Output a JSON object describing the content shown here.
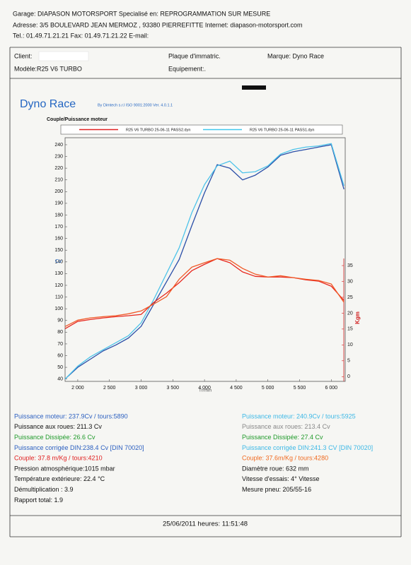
{
  "header": {
    "lines": [
      "Garage: DIAPASON MOTORSPORT   Specialisé en: REPROGRAMMATION SUR MESURE",
      "Adresse: 3/5 BOULEVARD JEAN MERMOZ , 93380 PIERREFITTE Internet: diapason-motorsport.com",
      "Tel.: 01.49.71.21.21 Fax: 01.49.71.21.22 E-mail:"
    ]
  },
  "vehicle": {
    "client": "Client:",
    "plate": "Plaque d'immatric.",
    "brand": "Marque: Dyno Race",
    "model": "Modèle:R25 V6 TURBO",
    "equipment": "Equipement:."
  },
  "software": {
    "title": "Dyno Race",
    "credit": "By Dimtech s.r.l  ISO 9001:2000  Ver. 4.0.1.1"
  },
  "chart_data": {
    "type": "line",
    "title": "Couple/Puissance moteur",
    "y_label": "Cv",
    "y2_label": "Kgm",
    "x_label": "Tr/min",
    "legend": [
      {
        "name": "R25 V6 TURBO 25-06-11 PASS2.dyn",
        "color": "#e02020"
      },
      {
        "name": "R25 V6 TURBO 25-06-11 PASS1.dyn",
        "color": "#40c8ec"
      }
    ],
    "x": [
      1800,
      2000,
      2200,
      2400,
      2600,
      2800,
      3000,
      3200,
      3400,
      3600,
      3800,
      4000,
      4200,
      4400,
      4600,
      4800,
      5000,
      5200,
      5400,
      5600,
      5800,
      6000,
      6200
    ],
    "series": [
      {
        "color": "#2b4fa8",
        "values": [
          40,
          50,
          57,
          64,
          69,
          75,
          85,
          104,
          123,
          142,
          171,
          199,
          223,
          220,
          210,
          214,
          221,
          231,
          234,
          236,
          238,
          240,
          202
        ]
      },
      {
        "color": "#4cc3ea",
        "values": [
          40,
          51,
          59,
          65,
          71,
          77,
          88,
          108,
          130,
          152,
          182,
          206,
          222,
          226,
          216,
          217,
          222,
          232,
          236,
          238,
          239,
          241,
          205
        ]
      },
      {
        "color": "#e8261c",
        "axis": "y2",
        "values": [
          15.1,
          17.4,
          18,
          18.5,
          18.9,
          19.2,
          19.6,
          23.4,
          26.3,
          29.6,
          33.4,
          35.4,
          37.2,
          35.9,
          33,
          31.6,
          31.4,
          31.4,
          31.2,
          30.5,
          30.1,
          28.5,
          24
        ]
      },
      {
        "color": "#f05a28",
        "axis": "y2",
        "values": [
          15.8,
          17.8,
          18.5,
          18.9,
          19.2,
          19.8,
          20.7,
          22.9,
          25.2,
          30.7,
          34.5,
          35.9,
          37.2,
          36.7,
          34.1,
          32.3,
          31.4,
          31.8,
          31.2,
          30.7,
          30.3,
          29.2,
          23.4
        ]
      }
    ],
    "xlim": [
      1800,
      6220
    ],
    "xticks": [
      {
        "value": 2000,
        "label": "2 000"
      },
      {
        "value": 2500,
        "label": "2 500"
      },
      {
        "value": 3000,
        "label": "3 000"
      },
      {
        "value": 3500,
        "label": "3 500"
      },
      {
        "value": 4000,
        "label": "4 000"
      },
      {
        "value": 4500,
        "label": "4 500"
      },
      {
        "value": 5000,
        "label": "5 000"
      },
      {
        "value": 5500,
        "label": "5 500"
      },
      {
        "value": 6000,
        "label": "6 000"
      }
    ],
    "ylim": [
      38,
      246
    ],
    "yticks": [
      40,
      50,
      60,
      70,
      80,
      90,
      100,
      110,
      120,
      130,
      140,
      150,
      160,
      170,
      180,
      190,
      200,
      210,
      220,
      230,
      240
    ],
    "y2lim": [
      -1.5,
      75.3
    ],
    "y2ticks": [
      0,
      5,
      10,
      15,
      20,
      25,
      30,
      35
    ]
  },
  "results": {
    "left": [
      {
        "text": "Puissance moteur: 237.9Cv / tours:5890",
        "color": "#2b5fc0"
      },
      {
        "text": "Puissance aux roues: 211.3 Cv",
        "color": "#111111"
      },
      {
        "text": "Puissance Dissipée: 26.6 Cv",
        "color": "#1f9a2a"
      },
      {
        "text": "Puissance corrigée DIN:238.4 Cv   [DIN 70020]",
        "color": "#2b5fc0"
      },
      {
        "text": "Couple: 37.8 m/Kg / tours:4210",
        "color": "#e02020"
      },
      {
        "text": "Pression atmosphérique:1015 mbar",
        "color": "#111111"
      },
      {
        "text": "Température extérieure: 22.4 °C",
        "color": "#111111"
      },
      {
        "text": "Démultiplication : 3.9",
        "color": "#111111"
      },
      {
        "text": "Rapport total: 1.9",
        "color": "#111111"
      }
    ],
    "right": [
      {
        "text": "Puissance moteur: 240.9Cv / tours:5925",
        "color": "#3cb8e6"
      },
      {
        "text": "Puissance aux roues: 213.4 Cv",
        "color": "#888888"
      },
      {
        "text": "Puissance Dissipée: 27.4 Cv",
        "color": "#1f9a2a"
      },
      {
        "text": "Puissance corrigée DIN:241.3 CV   [DIN 70020]",
        "color": "#3cb8e6"
      },
      {
        "text": "Couple: 37.6m/Kg / tours:4280",
        "color": "#f06a20"
      },
      {
        "text": "Diamètre roue: 632 mm",
        "color": "#111111"
      },
      {
        "text": "Vitesse d'essais: 4° Vitesse",
        "color": "#111111"
      },
      {
        "text": "Mesure pneu: 205/55-16",
        "color": "#111111"
      }
    ]
  },
  "footer": {
    "timestamp": "25/06/2011 heures: 11:51:48"
  }
}
